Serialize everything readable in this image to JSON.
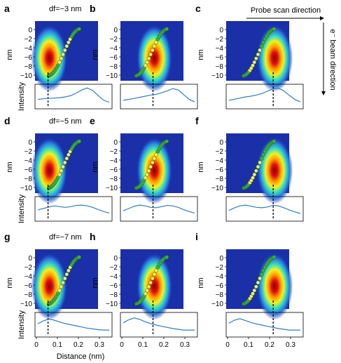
{
  "figure": {
    "top_labels": {
      "probe_scan": "Probe scan direction",
      "beam": "e⁻ beam direction"
    },
    "xlabel": "Distance (nm)",
    "ylabel_map": "nm",
    "ylabel_profile": "Intensity",
    "y_ticks": [
      "0",
      "−2",
      "−4",
      "−6",
      "−8",
      "−10"
    ],
    "x_ticks": [
      "0",
      "0.1",
      "0.2",
      "0.3"
    ],
    "colors": {
      "map_bg": "#1a2fa8",
      "curve_points": "#3fae3f",
      "highlight_points": "#f5f05a",
      "profile_line": "#2f7fc1"
    },
    "rows": [
      {
        "df_label": "df=−3 nm",
        "panels": [
          {
            "letter": "a",
            "hot_frac": 0.14,
            "profile": [
              0.35,
              0.38,
              0.4,
              0.42,
              0.44,
              0.48,
              0.55,
              0.68,
              0.85,
              0.95,
              0.82,
              0.55,
              0.3,
              0.2
            ]
          },
          {
            "letter": "b",
            "hot_frac": 0.45,
            "profile": [
              0.3,
              0.35,
              0.4,
              0.46,
              0.52,
              0.58,
              0.62,
              0.7,
              0.8,
              0.92,
              0.85,
              0.6,
              0.35,
              0.22
            ]
          },
          {
            "letter": "c",
            "hot_frac": 0.68,
            "profile": [
              0.3,
              0.36,
              0.42,
              0.48,
              0.52,
              0.58,
              0.66,
              0.78,
              0.9,
              0.94,
              0.8,
              0.56,
              0.34,
              0.22
            ]
          }
        ]
      },
      {
        "df_label": "df=−5 nm",
        "panels": [
          {
            "letter": "d",
            "hot_frac": 0.14,
            "profile": [
              0.45,
              0.52,
              0.6,
              0.66,
              0.62,
              0.58,
              0.62,
              0.68,
              0.7,
              0.66,
              0.58,
              0.46,
              0.36,
              0.28
            ]
          },
          {
            "letter": "e",
            "hot_frac": 0.45,
            "profile": [
              0.4,
              0.52,
              0.64,
              0.7,
              0.66,
              0.58,
              0.56,
              0.62,
              0.68,
              0.66,
              0.58,
              0.46,
              0.36,
              0.28
            ]
          },
          {
            "letter": "f",
            "hot_frac": 0.68,
            "profile": [
              0.42,
              0.55,
              0.66,
              0.7,
              0.64,
              0.58,
              0.56,
              0.6,
              0.68,
              0.66,
              0.56,
              0.44,
              0.34,
              0.26
            ]
          }
        ]
      },
      {
        "df_label": "df=−7 nm",
        "panels": [
          {
            "letter": "g",
            "hot_frac": 0.14,
            "profile": [
              0.55,
              0.7,
              0.8,
              0.74,
              0.64,
              0.56,
              0.5,
              0.44,
              0.38,
              0.32,
              0.28,
              0.24,
              0.22,
              0.22
            ]
          },
          {
            "letter": "h",
            "hot_frac": 0.45,
            "profile": [
              0.6,
              0.76,
              0.86,
              0.78,
              0.66,
              0.56,
              0.48,
              0.42,
              0.36,
              0.3,
              0.26,
              0.22,
              0.22,
              0.22
            ]
          },
          {
            "letter": "i",
            "hot_frac": 0.68,
            "profile": [
              0.58,
              0.74,
              0.82,
              0.72,
              0.62,
              0.54,
              0.48,
              0.42,
              0.36,
              0.3,
              0.26,
              0.22,
              0.22,
              0.22
            ]
          }
        ]
      }
    ]
  }
}
